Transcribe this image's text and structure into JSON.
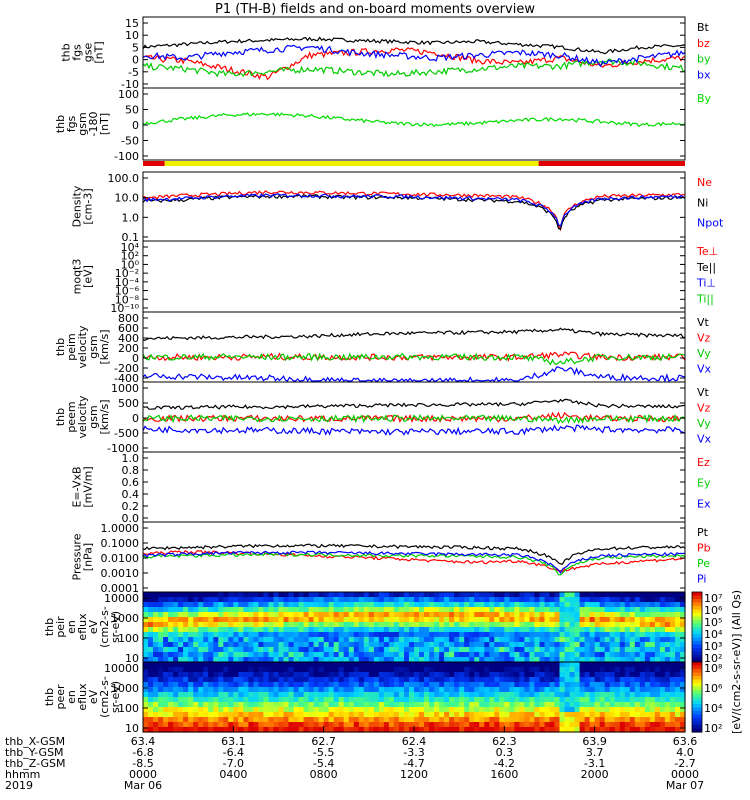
{
  "title": "P1 (TH-B) fields and on-board moments overview",
  "chart_data": [
    {
      "panel": "fgs_gse",
      "type": "line",
      "ylabel": [
        "thb",
        "fgs",
        "gse",
        "[nT]"
      ],
      "yticks": [
        "15",
        "10",
        "5",
        "0",
        "-5",
        "-10"
      ],
      "ylim": [
        -10,
        16
      ],
      "series": [
        {
          "name": "Bt",
          "color": "#000000",
          "values": [
            5,
            6,
            7,
            7.5,
            8,
            7.5,
            7,
            6.5,
            7,
            6,
            5,
            3,
            5,
            5.5
          ]
        },
        {
          "name": "bz",
          "color": "#ff0000",
          "values": [
            1,
            0,
            -3,
            -6,
            2,
            3,
            4,
            3,
            0,
            -1,
            1,
            -2,
            0,
            1
          ]
        },
        {
          "name": "by",
          "color": "#00cc00",
          "values": [
            -2,
            -3,
            -5,
            -4,
            -3,
            -4,
            -5,
            -4,
            -3,
            -2,
            -2,
            0,
            -1,
            -3
          ]
        },
        {
          "name": "bx",
          "color": "#0000ff",
          "values": [
            2,
            1,
            3,
            4,
            5,
            3,
            2,
            1,
            2,
            3,
            2,
            -1,
            1,
            3
          ]
        }
      ]
    },
    {
      "panel": "fgs_gsm_angle",
      "type": "line",
      "ylabel": [
        "thb",
        "fgs",
        "gsm",
        "-180",
        "[nT]"
      ],
      "yticks": [
        "100",
        "50",
        "0",
        "-50",
        "-100"
      ],
      "ylim": [
        -125,
        120
      ],
      "series": [
        {
          "name": "By",
          "color": "#00dd00",
          "values": [
            0,
            15,
            28,
            32,
            25,
            12,
            0,
            -5,
            0,
            10,
            15,
            5,
            -5,
            0
          ]
        }
      ]
    },
    {
      "panel": "mode_bar",
      "type": "bar",
      "segments": [
        {
          "color": "#e00000",
          "from": 0.0,
          "to": 0.04
        },
        {
          "color": "#f0f000",
          "from": 0.04,
          "to": 0.73
        },
        {
          "color": "#e00000",
          "from": 0.73,
          "to": 1.0
        }
      ]
    },
    {
      "panel": "density",
      "type": "line",
      "ylabel": [
        "Density",
        "[cm-3]"
      ],
      "yticks": [
        "100.0",
        "10.0",
        "1.0",
        "0.1"
      ],
      "ylim": [
        0.05,
        150
      ],
      "series": [
        {
          "name": "Ne",
          "color": "#ff0000",
          "values": [
            7,
            10,
            12,
            15,
            14,
            13,
            12,
            11,
            10,
            8,
            0.1,
            9,
            10,
            11
          ]
        },
        {
          "name": "Ni",
          "color": "#000000",
          "values": [
            5,
            6,
            8,
            9,
            9,
            8,
            8,
            7,
            6,
            5,
            0.08,
            6,
            7,
            8
          ]
        },
        {
          "name": "Npot",
          "color": "#0000ff",
          "values": [
            6,
            7,
            9,
            10,
            10,
            9,
            9,
            8,
            7,
            6,
            0.2,
            7,
            8,
            9
          ]
        }
      ]
    },
    {
      "panel": "temperature",
      "type": "line",
      "ylabel": [
        "moqt3",
        "[eV]"
      ],
      "yticks": [
        "10⁴",
        "10²",
        "10⁰",
        "10⁻²",
        "10⁻⁴",
        "10⁻⁶",
        "10⁻⁸",
        "10⁻¹⁰"
      ],
      "series": [
        {
          "name": "Te⊥",
          "color": "#ff0000"
        },
        {
          "name": "Te||",
          "color": "#000000"
        },
        {
          "name": "Ti⊥",
          "color": "#0000ff"
        },
        {
          "name": "Ti||",
          "color": "#00cc00"
        }
      ]
    },
    {
      "panel": "peim_velocity",
      "type": "line",
      "ylabel": [
        "thb",
        "peim",
        "velocity",
        "gsm",
        "[km/s]"
      ],
      "yticks": [
        "800",
        "600",
        "400",
        "200",
        "0",
        "-200",
        "-400"
      ],
      "ylim": [
        -450,
        820
      ],
      "series": [
        {
          "name": "Vt",
          "color": "#000000",
          "values": [
            340,
            350,
            360,
            370,
            380,
            410,
            430,
            440,
            450,
            460,
            500,
            420,
            400,
            390
          ]
        },
        {
          "name": "Vz",
          "color": "#ff0000",
          "values": [
            0,
            0,
            0,
            10,
            0,
            0,
            0,
            0,
            0,
            0,
            50,
            0,
            0,
            0
          ]
        },
        {
          "name": "Vy",
          "color": "#00cc00",
          "values": [
            5,
            0,
            10,
            0,
            5,
            0,
            10,
            5,
            0,
            5,
            -100,
            5,
            0,
            5
          ]
        },
        {
          "name": "Vx",
          "color": "#0000ff",
          "values": [
            -340,
            -350,
            -370,
            -380,
            -400,
            -430,
            -440,
            -430,
            -420,
            -430,
            -200,
            -360,
            -370,
            -380
          ]
        }
      ]
    },
    {
      "panel": "peem_velocity",
      "type": "line",
      "ylabel": [
        "thb",
        "peem",
        "velocity",
        "gsm",
        "[km/s]"
      ],
      "yticks": [
        "1000",
        "500",
        "0",
        "-500",
        "-1000"
      ],
      "ylim": [
        -1100,
        1200
      ],
      "series": [
        {
          "name": "Vt",
          "color": "#000000",
          "values": [
            350,
            360,
            380,
            380,
            400,
            420,
            440,
            450,
            460,
            470,
            600,
            420,
            400,
            390
          ]
        },
        {
          "name": "Vz",
          "color": "#ff0000",
          "values": [
            0,
            0,
            10,
            0,
            0,
            0,
            0,
            0,
            0,
            0,
            100,
            0,
            0,
            0
          ]
        },
        {
          "name": "Vy",
          "color": "#00cc00",
          "values": [
            0,
            5,
            0,
            5,
            0,
            0,
            5,
            0,
            0,
            5,
            -50,
            0,
            0,
            0
          ]
        },
        {
          "name": "Vx",
          "color": "#0000ff",
          "values": [
            -350,
            -360,
            -380,
            -390,
            -410,
            -430,
            -440,
            -430,
            -420,
            -430,
            -300,
            -360,
            -370,
            -380
          ]
        }
      ]
    },
    {
      "panel": "efield",
      "type": "line",
      "ylabel": [
        "E=-VxB",
        "[mV/m]"
      ],
      "yticks": [
        "1.0",
        "0.8",
        "0.6",
        "0.4",
        "0.2",
        "0.0"
      ],
      "ylim": [
        0,
        1
      ],
      "series": [
        {
          "name": "Ez",
          "color": "#ff0000"
        },
        {
          "name": "Ey",
          "color": "#00cc00"
        },
        {
          "name": "Ex",
          "color": "#0000ff"
        }
      ]
    },
    {
      "panel": "pressure",
      "type": "line",
      "ylabel": [
        "Pressure",
        "[nPa]"
      ],
      "yticks": [
        "1.0000",
        "0.1000",
        "0.0100",
        "0.0010",
        "0.0001"
      ],
      "ylim": [
        0.0001,
        1
      ],
      "series": [
        {
          "name": "Pt",
          "color": "#000000",
          "values": [
            0.03,
            0.035,
            0.04,
            0.045,
            0.045,
            0.043,
            0.04,
            0.038,
            0.035,
            0.03,
            0.003,
            0.03,
            0.035,
            0.038
          ]
        },
        {
          "name": "Pb",
          "color": "#ff0000",
          "values": [
            0.015,
            0.02,
            0.018,
            0.015,
            0.012,
            0.01,
            0.008,
            0.006,
            0.005,
            0.006,
            0.0015,
            0.004,
            0.006,
            0.008
          ]
        },
        {
          "name": "Pe",
          "color": "#00cc00",
          "values": [
            0.01,
            0.012,
            0.013,
            0.014,
            0.014,
            0.013,
            0.012,
            0.012,
            0.011,
            0.01,
            0.0008,
            0.009,
            0.011,
            0.012
          ]
        },
        {
          "name": "Pi",
          "color": "#0000ff",
          "values": [
            0.012,
            0.015,
            0.017,
            0.018,
            0.018,
            0.017,
            0.016,
            0.015,
            0.014,
            0.013,
            0.0012,
            0.012,
            0.014,
            0.015
          ]
        }
      ]
    },
    {
      "panel": "peir_spectrogram",
      "type": "heatmap",
      "ylabel": [
        "thb",
        "peir",
        "en",
        "eflux",
        "eV",
        "(cm2-s-",
        "sr-eV)"
      ],
      "yticks": [
        "10000",
        "1000",
        "100",
        "10"
      ],
      "colorbar_ticks": [
        "10⁷",
        "10⁶",
        "10⁵",
        "10⁴",
        "10³",
        "10²"
      ]
    },
    {
      "panel": "peer_spectrogram",
      "type": "heatmap",
      "ylabel": [
        "thb",
        "peer",
        "en",
        "eflux",
        "eV",
        "(cm2-s-",
        "sr-eV)"
      ],
      "yticks": [
        "10000",
        "1000",
        "100",
        "10"
      ],
      "colorbar_ticks": [
        "10⁸",
        "10⁶",
        "10⁴",
        "10²"
      ]
    }
  ],
  "colorbar_label": "[eV/(cm2-s-sr-eV)] (All Qs)",
  "xaxis": {
    "rows": [
      {
        "label": "thb_X-GSM",
        "values": [
          "63.4",
          "63.1",
          "62.7",
          "62.4",
          "62.3",
          "63.9",
          "63.6"
        ]
      },
      {
        "label": "thb_Y-GSM",
        "values": [
          "-6.8",
          "-6.4",
          "-5.5",
          "-3.3",
          "0.3",
          "3.7",
          "4.0"
        ]
      },
      {
        "label": "thb_Z-GSM",
        "values": [
          "-8.5",
          "-7.0",
          "-5.4",
          "-4.7",
          "-4.2",
          "-3.1",
          "-2.7"
        ]
      },
      {
        "label": "hhmm",
        "values": [
          "0000",
          "0400",
          "0800",
          "1200",
          "1600",
          "2000",
          "0000"
        ]
      },
      {
        "label": "2019",
        "values": [
          "Mar 06",
          "",
          "",
          "",
          "",
          "",
          "Mar 07"
        ]
      }
    ]
  }
}
